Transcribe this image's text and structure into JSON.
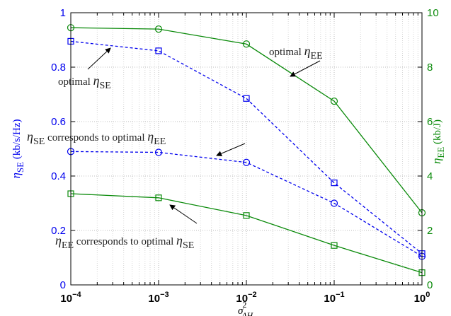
{
  "chart_data": {
    "type": "line",
    "x_scale": "log",
    "x": [
      0.0001,
      0.001,
      0.01,
      0.1,
      1
    ],
    "xlim": [
      0.0001,
      1
    ],
    "x_ticks": [
      {
        "base": "10",
        "exp": "−4"
      },
      {
        "base": "10",
        "exp": "−3"
      },
      {
        "base": "10",
        "exp": "−2"
      },
      {
        "base": "10",
        "exp": "−1"
      },
      {
        "base": "10",
        "exp": "0"
      }
    ],
    "xlabel": {
      "sym": "σ",
      "sup": "2",
      "sub": "ΔH"
    },
    "ylabel_left": {
      "sym": "η",
      "sub": "SE",
      "unit": "(kb/s/Hz)"
    },
    "ylabel_right": {
      "sym": "η",
      "sub": "EE",
      "unit": "(kb/J)"
    },
    "ylim_left": [
      0,
      1
    ],
    "ylim_right": [
      0,
      10
    ],
    "yticks_left": [
      "0",
      "0.2",
      "0.4",
      "0.6",
      "0.8",
      "1"
    ],
    "yticks_right": [
      "0",
      "2",
      "4",
      "6",
      "8",
      "10"
    ],
    "grid": true,
    "colors": {
      "se": "#0000ee",
      "ee": "#0a8a0a"
    },
    "series": [
      {
        "axis": "left",
        "style": "dashed",
        "marker": "square",
        "values": [
          0.895,
          0.86,
          0.685,
          0.375,
          0.115
        ]
      },
      {
        "axis": "left",
        "style": "dashed",
        "marker": "circle",
        "values": [
          0.49,
          0.487,
          0.45,
          0.3,
          0.105
        ]
      },
      {
        "axis": "right",
        "style": "solid",
        "marker": "circle",
        "values": [
          9.45,
          9.4,
          8.85,
          6.75,
          2.65
        ]
      },
      {
        "axis": "right",
        "style": "solid",
        "marker": "square",
        "values": [
          3.35,
          3.2,
          2.55,
          1.45,
          0.45
        ]
      }
    ],
    "annotations": [
      {
        "parts": [
          "optimal ",
          "η",
          "SE",
          ""
        ]
      },
      {
        "parts": [
          "optimal ",
          "η",
          "EE",
          ""
        ]
      },
      {
        "parts": [
          "",
          "η",
          "SE",
          " corresponds to optimal "
        ],
        "tail": [
          "η",
          "EE"
        ]
      },
      {
        "parts": [
          "",
          "η",
          "EE",
          " corresponds to optimal "
        ],
        "tail": [
          "η",
          "SE"
        ]
      }
    ]
  }
}
